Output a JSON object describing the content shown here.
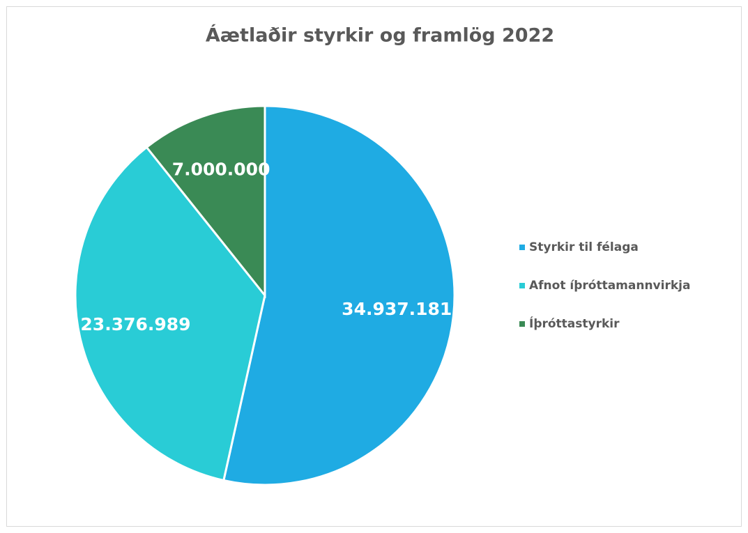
{
  "chart_data": {
    "type": "pie",
    "title": "Áætlaðir styrkir og framlög 2022",
    "categories": [
      "Styrkir til félaga",
      "Afnot íþróttamannvirkja",
      "Íþróttastyrkir"
    ],
    "values": [
      34937181,
      23376989,
      7000000
    ],
    "value_labels": [
      "34.937.181",
      "23.376.989",
      "7.000.000"
    ],
    "colors": [
      "#1fabe3",
      "#29ccd6",
      "#3a8a55"
    ],
    "legend": "right"
  }
}
